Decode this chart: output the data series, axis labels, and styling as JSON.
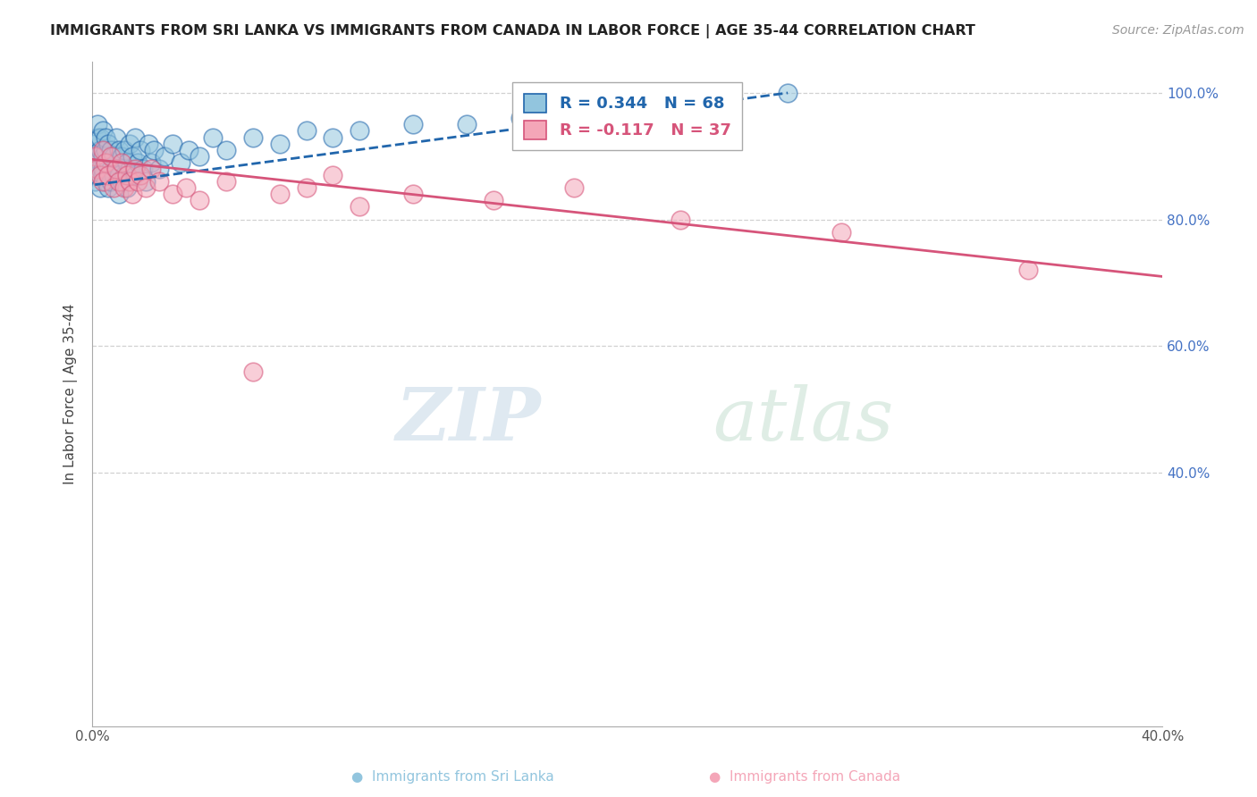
{
  "title": "IMMIGRANTS FROM SRI LANKA VS IMMIGRANTS FROM CANADA IN LABOR FORCE | AGE 35-44 CORRELATION CHART",
  "source": "Source: ZipAtlas.com",
  "ylabel": "In Labor Force | Age 35-44",
  "xlim": [
    0.0,
    0.4
  ],
  "ylim": [
    0.0,
    1.05
  ],
  "color_blue": "#92c5de",
  "color_pink": "#f4a6b8",
  "line_blue": "#2166ac",
  "line_pink": "#d6547a",
  "R_blue": 0.344,
  "N_blue": 68,
  "R_pink": -0.117,
  "N_pink": 37,
  "sri_lanka_x": [
    0.001,
    0.001,
    0.001,
    0.002,
    0.002,
    0.002,
    0.002,
    0.003,
    0.003,
    0.003,
    0.003,
    0.004,
    0.004,
    0.004,
    0.004,
    0.005,
    0.005,
    0.005,
    0.006,
    0.006,
    0.006,
    0.007,
    0.007,
    0.007,
    0.008,
    0.008,
    0.009,
    0.009,
    0.01,
    0.01,
    0.01,
    0.011,
    0.011,
    0.012,
    0.012,
    0.013,
    0.013,
    0.014,
    0.014,
    0.015,
    0.016,
    0.016,
    0.017,
    0.018,
    0.019,
    0.02,
    0.021,
    0.022,
    0.023,
    0.025,
    0.027,
    0.03,
    0.033,
    0.036,
    0.04,
    0.045,
    0.05,
    0.06,
    0.07,
    0.08,
    0.09,
    0.1,
    0.12,
    0.14,
    0.16,
    0.18,
    0.22,
    0.26
  ],
  "sri_lanka_y": [
    0.92,
    0.89,
    0.86,
    0.93,
    0.9,
    0.87,
    0.95,
    0.91,
    0.88,
    0.85,
    0.93,
    0.9,
    0.87,
    0.94,
    0.88,
    0.91,
    0.86,
    0.93,
    0.89,
    0.85,
    0.92,
    0.88,
    0.86,
    0.91,
    0.9,
    0.87,
    0.93,
    0.88,
    0.91,
    0.87,
    0.84,
    0.9,
    0.86,
    0.91,
    0.87,
    0.89,
    0.85,
    0.92,
    0.88,
    0.9,
    0.87,
    0.93,
    0.89,
    0.91,
    0.88,
    0.86,
    0.92,
    0.89,
    0.91,
    0.88,
    0.9,
    0.92,
    0.89,
    0.91,
    0.9,
    0.93,
    0.91,
    0.93,
    0.92,
    0.94,
    0.93,
    0.94,
    0.95,
    0.95,
    0.96,
    0.97,
    0.98,
    1.0
  ],
  "canada_x": [
    0.001,
    0.002,
    0.003,
    0.004,
    0.004,
    0.005,
    0.006,
    0.007,
    0.008,
    0.009,
    0.01,
    0.011,
    0.012,
    0.013,
    0.014,
    0.015,
    0.016,
    0.017,
    0.018,
    0.02,
    0.022,
    0.025,
    0.03,
    0.035,
    0.04,
    0.05,
    0.06,
    0.07,
    0.08,
    0.09,
    0.1,
    0.12,
    0.15,
    0.18,
    0.22,
    0.28,
    0.35
  ],
  "canada_y": [
    0.9,
    0.88,
    0.87,
    0.91,
    0.86,
    0.89,
    0.87,
    0.9,
    0.85,
    0.88,
    0.86,
    0.89,
    0.85,
    0.87,
    0.86,
    0.84,
    0.88,
    0.86,
    0.87,
    0.85,
    0.88,
    0.86,
    0.84,
    0.85,
    0.83,
    0.86,
    0.56,
    0.84,
    0.85,
    0.87,
    0.82,
    0.84,
    0.83,
    0.85,
    0.8,
    0.78,
    0.72
  ],
  "canada_line_x0": 0.0,
  "canada_line_y0": 0.895,
  "canada_line_x1": 0.4,
  "canada_line_y1": 0.71,
  "sri_lanka_line_x0": 0.001,
  "sri_lanka_line_y0": 0.855,
  "sri_lanka_line_x1": 0.26,
  "sri_lanka_line_y1": 1.0
}
